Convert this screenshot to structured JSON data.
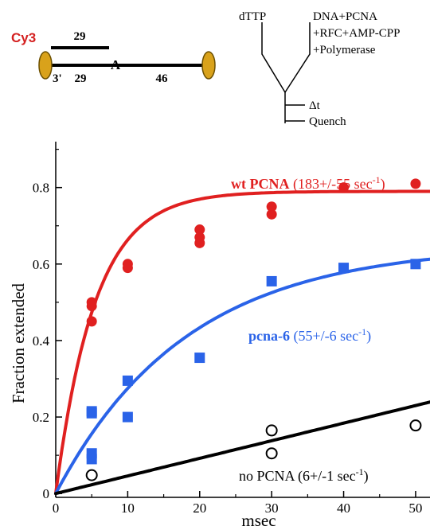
{
  "schematic": {
    "dye_label": "Cy3",
    "top_strand_length": "29",
    "bottom_left_length": "29",
    "three_prime_label": "3'",
    "template_base": "A",
    "bottom_right_length": "46",
    "reagent_left": "dTTP",
    "reagent_right_lines": [
      "DNA+PCNA",
      "+RFC+AMP-CPP",
      "+Polymerase"
    ],
    "delay_label": "Δt",
    "quench_label": "Quench",
    "colors": {
      "dye": "#d42020",
      "bead": "#d9a21b",
      "strand": "#000000"
    }
  },
  "chart_data": {
    "type": "scatter",
    "xlabel": "msec",
    "ylabel": "Fraction extended",
    "xlim": [
      0,
      52
    ],
    "ylim": [
      -0.01,
      0.92
    ],
    "xticks": [
      0,
      10,
      20,
      30,
      40,
      50
    ],
    "yticks": [
      0,
      0.2,
      0.4,
      0.6,
      0.8
    ],
    "grid": false,
    "series": [
      {
        "name": "wt PCNA",
        "annotation_bold": "wt PCNA",
        "annotation_rate": " (183+/-55 sec",
        "annotation_sup": "-1",
        "annotation_close": ")",
        "color": "#e02020",
        "marker": "circle-filled",
        "points": [
          [
            5,
            0.5
          ],
          [
            5,
            0.49
          ],
          [
            5,
            0.45
          ],
          [
            10,
            0.6
          ],
          [
            10,
            0.59
          ],
          [
            20,
            0.69
          ],
          [
            20,
            0.67
          ],
          [
            20,
            0.655
          ],
          [
            30,
            0.75
          ],
          [
            30,
            0.73
          ],
          [
            40,
            0.8
          ],
          [
            50,
            0.81
          ]
        ],
        "fit": {
          "model": "amplitude*(1-exp(-k*t))",
          "amplitude": 0.79,
          "k": 0.183,
          "color": "#e02020"
        }
      },
      {
        "name": "pcna-6",
        "annotation_bold": "pcna-6",
        "annotation_rate": " (55+/-6 sec",
        "annotation_sup": "-1",
        "annotation_close": ")",
        "color": "#2a63e8",
        "marker": "square-filled",
        "points": [
          [
            5,
            0.215
          ],
          [
            5,
            0.21
          ],
          [
            5,
            0.105
          ],
          [
            5,
            0.09
          ],
          [
            10,
            0.295
          ],
          [
            10,
            0.2
          ],
          [
            20,
            0.355
          ],
          [
            30,
            0.555
          ],
          [
            40,
            0.59
          ],
          [
            50,
            0.6
          ]
        ],
        "fit": {
          "model": "amplitude*(1-exp(-k*t))",
          "amplitude": 0.65,
          "k": 0.055,
          "color": "#2a63e8"
        }
      },
      {
        "name": "no PCNA",
        "annotation_bold": "",
        "annotation_rate": "no PCNA (6+/-1 sec",
        "annotation_sup": "-1",
        "annotation_close": ")",
        "color": "#000000",
        "marker": "circle-open",
        "points": [
          [
            5,
            0.048
          ],
          [
            30,
            0.165
          ],
          [
            30,
            0.105
          ],
          [
            50,
            0.178
          ]
        ],
        "fit": {
          "model": "linear",
          "slope": 0.0046,
          "color": "#000000"
        }
      }
    ]
  }
}
